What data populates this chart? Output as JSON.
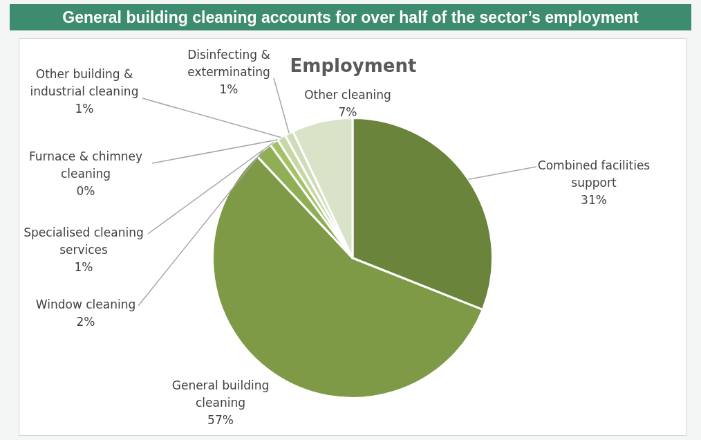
{
  "chart_data": {
    "type": "pie",
    "title": "General building cleaning accounts for over half of the sector’s employment",
    "subtitle": "Employment",
    "categories": [
      "Combined facilities support",
      "General building cleaning",
      "Window cleaning",
      "Specialised cleaning services",
      "Furnace & chimney cleaning",
      "Other building & industrial cleaning",
      "Disinfecting & exterminating",
      "Other cleaning"
    ],
    "values": [
      31,
      57,
      2,
      1,
      0,
      1,
      1,
      7
    ],
    "value_labels": [
      "31%",
      "57%",
      "2%",
      "1%",
      "0%",
      "1%",
      "1%",
      "7%"
    ],
    "colors": [
      "#6a843b",
      "#7f9a46",
      "#8fae55",
      "#a4c166",
      "#b8cf8c",
      "#c6d7a8",
      "#cfdcb8",
      "#d8e3c7"
    ],
    "legend": false
  }
}
